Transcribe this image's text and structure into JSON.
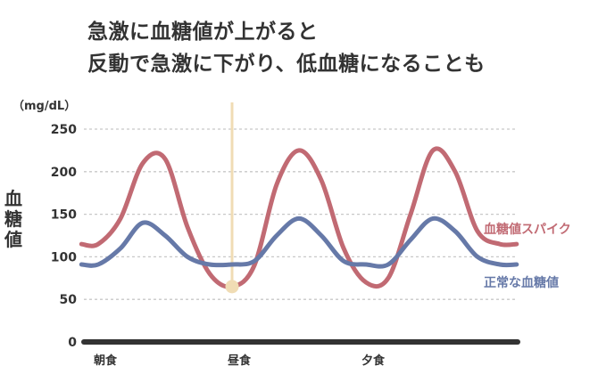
{
  "title_lines": [
    "急激に血糖値が上がると",
    "反動で急激に下がり、低血糖になることも"
  ],
  "unit": "（mg/dL）",
  "ylabel": "血糖値",
  "chart_data": {
    "type": "line",
    "title": "急激に血糖値が上がると 反動で急激に下がり、低血糖になることも",
    "ylabel": "血糖値",
    "ylim": [
      0,
      250
    ],
    "yticks": [
      0,
      50,
      100,
      150,
      200,
      250
    ],
    "grid": true,
    "x_categories": [
      {
        "label": "朝食",
        "x": 0
      },
      {
        "label": "昼食",
        "x": 6
      },
      {
        "label": "夕食",
        "x": 12
      }
    ],
    "marker": {
      "x": 6,
      "y": 65,
      "color": "#f0dcb4"
    },
    "series": [
      {
        "name": "血糖値スパイク",
        "color": "#c16a73",
        "x": [
          -0.75,
          0,
          1,
          2,
          3,
          4,
          5,
          6,
          7,
          8,
          9,
          10,
          11,
          12,
          13,
          14,
          15,
          16,
          17,
          18,
          18.75
        ],
        "y": [
          115,
          115,
          145,
          210,
          215,
          135,
          80,
          65,
          90,
          185,
          225,
          190,
          110,
          70,
          75,
          150,
          225,
          200,
          130,
          115,
          115
        ]
      },
      {
        "name": "正常な血糖値",
        "color": "#6679a8",
        "x": [
          -0.75,
          0,
          1,
          2,
          3,
          4,
          5,
          6,
          7,
          8,
          9,
          10,
          11,
          12,
          13,
          14,
          15,
          16,
          17,
          18,
          18.75
        ],
        "y": [
          91,
          91,
          110,
          140,
          125,
          100,
          91,
          91,
          95,
          125,
          145,
          125,
          95,
          91,
          91,
          120,
          145,
          130,
          100,
          91,
          91
        ]
      }
    ]
  },
  "colors": {
    "axis": "#333333",
    "grid": "#c8c8c8"
  }
}
